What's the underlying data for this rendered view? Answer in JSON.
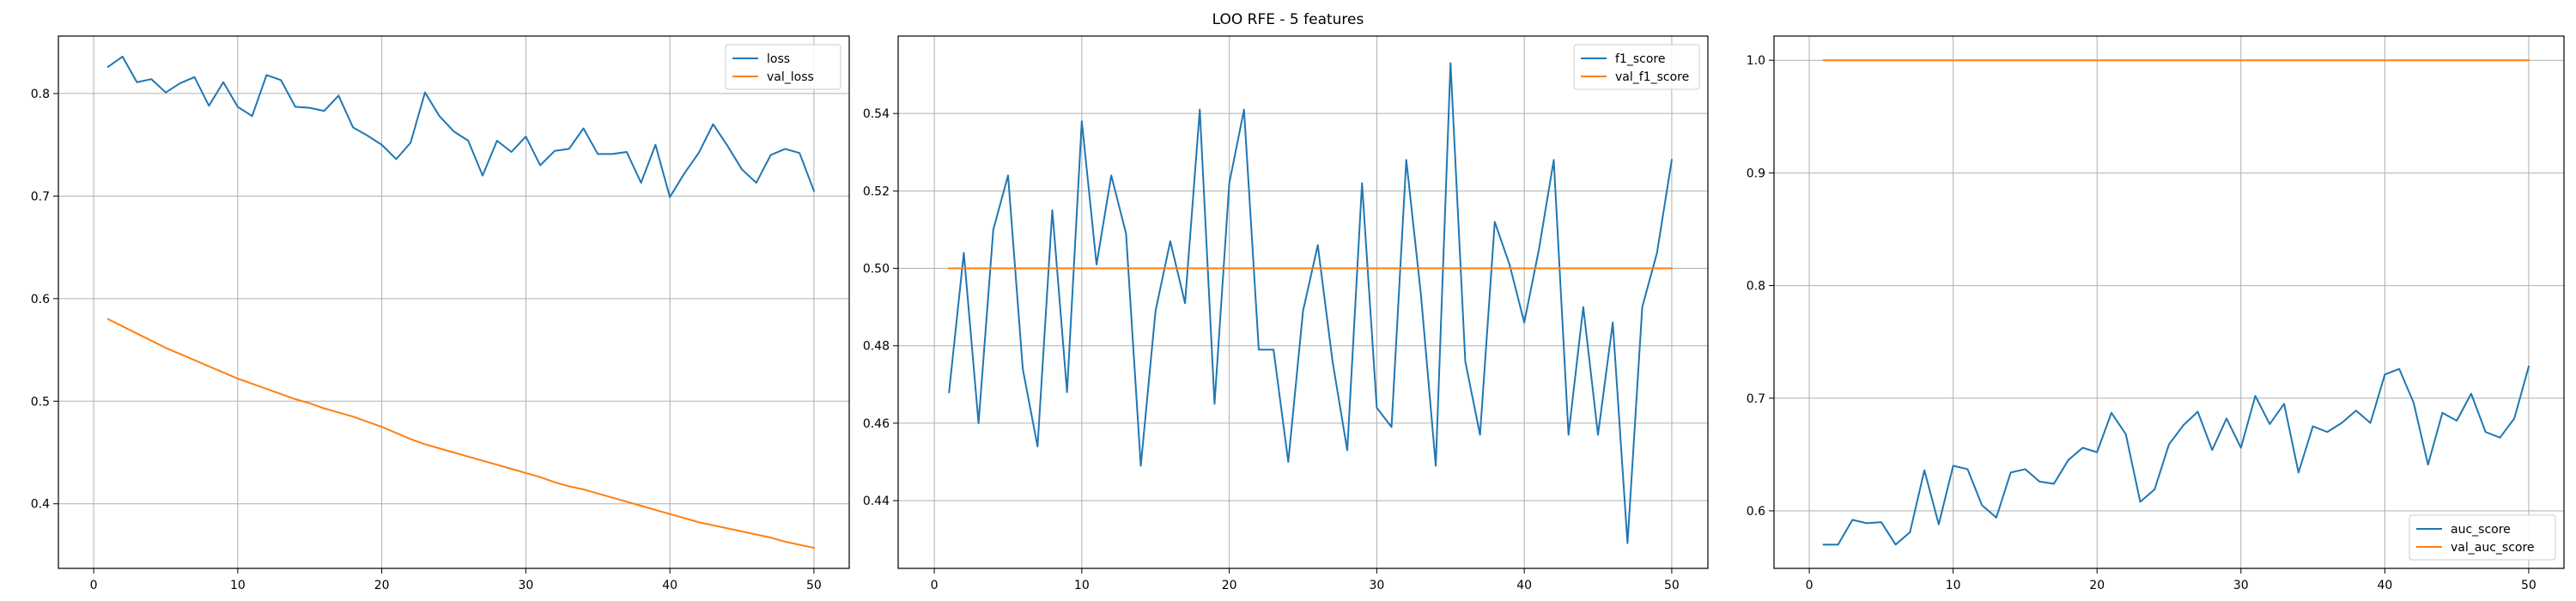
{
  "figure": {
    "title": "LOO RFE - 5 features"
  },
  "colors": {
    "series1": "#1f77b4",
    "series2": "#ff7f0e",
    "grid": "#b0b0b0",
    "axis": "#000000"
  },
  "chart_data": [
    {
      "type": "line",
      "xlim": [
        -2.45,
        52.45
      ],
      "ylim": [
        0.337,
        0.856
      ],
      "xticks": [
        0,
        10,
        20,
        30,
        40,
        50
      ],
      "yticks": [
        0.4,
        0.5,
        0.6,
        0.7,
        0.8
      ],
      "ytick_labels": [
        "0.4",
        "0.5",
        "0.6",
        "0.7",
        "0.8"
      ],
      "grid": true,
      "legend_loc": "top-right",
      "x": [
        1,
        2,
        3,
        4,
        5,
        6,
        7,
        8,
        9,
        10,
        11,
        12,
        13,
        14,
        15,
        16,
        17,
        18,
        19,
        20,
        21,
        22,
        23,
        24,
        25,
        26,
        27,
        28,
        29,
        30,
        31,
        32,
        33,
        34,
        35,
        36,
        37,
        38,
        39,
        40,
        41,
        42,
        43,
        44,
        45,
        46,
        47,
        48,
        49,
        50
      ],
      "series": [
        {
          "name": "loss",
          "color": "#1f77b4",
          "values": [
            0.826,
            0.836,
            0.811,
            0.814,
            0.801,
            0.81,
            0.816,
            0.788,
            0.811,
            0.787,
            0.778,
            0.818,
            0.813,
            0.787,
            0.786,
            0.783,
            0.798,
            0.767,
            0.759,
            0.75,
            0.736,
            0.752,
            0.801,
            0.778,
            0.763,
            0.754,
            0.72,
            0.754,
            0.743,
            0.758,
            0.73,
            0.744,
            0.746,
            0.766,
            0.741,
            0.741,
            0.743,
            0.713,
            0.75,
            0.699,
            0.722,
            0.742,
            0.77,
            0.749,
            0.726,
            0.713,
            0.74,
            0.746,
            0.742,
            0.705
          ]
        },
        {
          "name": "val_loss",
          "color": "#ff7f0e",
          "values": [
            0.58,
            0.573,
            0.566,
            0.559,
            0.552,
            0.546,
            0.54,
            0.534,
            0.528,
            0.522,
            0.517,
            0.512,
            0.507,
            0.502,
            0.498,
            0.493,
            0.489,
            0.485,
            0.48,
            0.475,
            0.469,
            0.463,
            0.458,
            0.454,
            0.45,
            0.446,
            0.442,
            0.438,
            0.434,
            0.43,
            0.426,
            0.421,
            0.417,
            0.414,
            0.41,
            0.406,
            0.402,
            0.398,
            0.394,
            0.39,
            0.386,
            0.382,
            0.379,
            0.376,
            0.373,
            0.37,
            0.367,
            0.363,
            0.36,
            0.357
          ]
        }
      ]
    },
    {
      "type": "line",
      "xlim": [
        -2.45,
        52.45
      ],
      "ylim": [
        0.4225,
        0.56
      ],
      "xticks": [
        0,
        10,
        20,
        30,
        40,
        50
      ],
      "yticks": [
        0.44,
        0.46,
        0.48,
        0.5,
        0.52,
        0.54
      ],
      "ytick_labels": [
        "0.44",
        "0.46",
        "0.48",
        "0.50",
        "0.52",
        "0.54"
      ],
      "grid": true,
      "legend_loc": "top-right",
      "x": [
        1,
        2,
        3,
        4,
        5,
        6,
        7,
        8,
        9,
        10,
        11,
        12,
        13,
        14,
        15,
        16,
        17,
        18,
        19,
        20,
        21,
        22,
        23,
        24,
        25,
        26,
        27,
        28,
        29,
        30,
        31,
        32,
        33,
        34,
        35,
        36,
        37,
        38,
        39,
        40,
        41,
        42,
        43,
        44,
        45,
        46,
        47,
        48,
        49,
        50
      ],
      "series": [
        {
          "name": "f1_score",
          "color": "#1f77b4",
          "values": [
            0.468,
            0.504,
            0.46,
            0.51,
            0.524,
            0.474,
            0.454,
            0.515,
            0.468,
            0.538,
            0.501,
            0.524,
            0.509,
            0.449,
            0.489,
            0.507,
            0.491,
            0.541,
            0.465,
            0.522,
            0.541,
            0.479,
            0.479,
            0.45,
            0.489,
            0.506,
            0.476,
            0.453,
            0.522,
            0.464,
            0.459,
            0.528,
            0.493,
            0.449,
            0.553,
            0.476,
            0.457,
            0.512,
            0.501,
            0.486,
            0.505,
            0.528,
            0.457,
            0.49,
            0.457,
            0.486,
            0.429,
            0.49,
            0.504,
            0.528
          ]
        },
        {
          "name": "val_f1_score",
          "color": "#ff7f0e",
          "values": [
            0.5,
            0.5,
            0.5,
            0.5,
            0.5,
            0.5,
            0.5,
            0.5,
            0.5,
            0.5,
            0.5,
            0.5,
            0.5,
            0.5,
            0.5,
            0.5,
            0.5,
            0.5,
            0.5,
            0.5,
            0.5,
            0.5,
            0.5,
            0.5,
            0.5,
            0.5,
            0.5,
            0.5,
            0.5,
            0.5,
            0.5,
            0.5,
            0.5,
            0.5,
            0.5,
            0.5,
            0.5,
            0.5,
            0.5,
            0.5,
            0.5,
            0.5,
            0.5,
            0.5,
            0.5,
            0.5,
            0.5,
            0.5,
            0.5,
            0.5
          ]
        }
      ]
    },
    {
      "type": "line",
      "xlim": [
        -2.45,
        52.45
      ],
      "ylim": [
        0.5489,
        1.0215
      ],
      "xticks": [
        0,
        10,
        20,
        30,
        40,
        50
      ],
      "yticks": [
        0.6,
        0.7,
        0.8,
        0.9,
        1.0
      ],
      "ytick_labels": [
        "0.6",
        "0.7",
        "0.8",
        "0.9",
        "1.0"
      ],
      "grid": true,
      "legend_loc": "bottom-right",
      "x": [
        1,
        2,
        3,
        4,
        5,
        6,
        7,
        8,
        9,
        10,
        11,
        12,
        13,
        14,
        15,
        16,
        17,
        18,
        19,
        20,
        21,
        22,
        23,
        24,
        25,
        26,
        27,
        28,
        29,
        30,
        31,
        32,
        33,
        34,
        35,
        36,
        37,
        38,
        39,
        40,
        41,
        42,
        43,
        44,
        45,
        46,
        47,
        48,
        49,
        50
      ],
      "series": [
        {
          "name": "auc_score",
          "color": "#1f77b4",
          "values": [
            0.57,
            0.57,
            0.592,
            0.589,
            0.59,
            0.57,
            0.581,
            0.636,
            0.588,
            0.64,
            0.637,
            0.605,
            0.594,
            0.634,
            0.637,
            0.626,
            0.624,
            0.645,
            0.656,
            0.652,
            0.687,
            0.668,
            0.608,
            0.619,
            0.659,
            0.676,
            0.688,
            0.654,
            0.682,
            0.656,
            0.702,
            0.677,
            0.695,
            0.634,
            0.675,
            0.67,
            0.678,
            0.689,
            0.678,
            0.721,
            0.726,
            0.696,
            0.641,
            0.687,
            0.68,
            0.704,
            0.67,
            0.665,
            0.682,
            0.728
          ]
        },
        {
          "name": "val_auc_score",
          "color": "#ff7f0e",
          "values": [
            1.0,
            1.0,
            1.0,
            1.0,
            1.0,
            1.0,
            1.0,
            1.0,
            1.0,
            1.0,
            1.0,
            1.0,
            1.0,
            1.0,
            1.0,
            1.0,
            1.0,
            1.0,
            1.0,
            1.0,
            1.0,
            1.0,
            1.0,
            1.0,
            1.0,
            1.0,
            1.0,
            1.0,
            1.0,
            1.0,
            1.0,
            1.0,
            1.0,
            1.0,
            1.0,
            1.0,
            1.0,
            1.0,
            1.0,
            1.0,
            1.0,
            1.0,
            1.0,
            1.0,
            1.0,
            1.0,
            1.0,
            1.0,
            1.0,
            1.0
          ]
        }
      ]
    }
  ]
}
